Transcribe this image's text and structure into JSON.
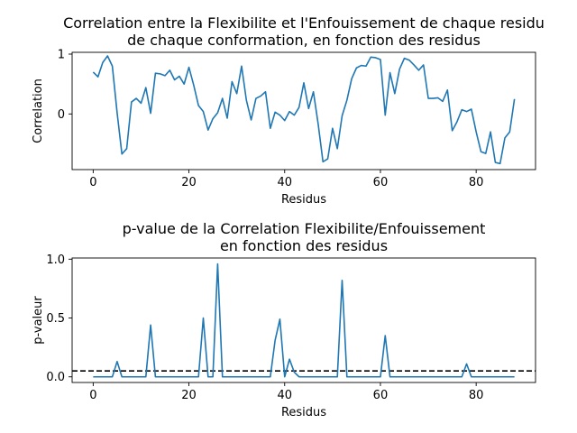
{
  "chart_data": [
    {
      "type": "line",
      "title": "Correlation entre la Flexibilite et l'Enfouissement de chaque residu\nde chaque conformation, en fonction des residus",
      "xlabel": "Residus",
      "ylabel": "Correlation",
      "xlim": [
        -4.4,
        92.4
      ],
      "ylim": [
        -0.93,
        1.03
      ],
      "xticks": [
        0,
        20,
        40,
        60,
        80
      ],
      "yticks": [
        1,
        0
      ],
      "grid": false,
      "series": [
        {
          "color": "#1f77b4",
          "x": [
            0,
            1,
            2,
            3,
            4,
            5,
            6,
            7,
            8,
            9,
            10,
            11,
            12,
            13,
            14,
            15,
            16,
            17,
            18,
            19,
            20,
            21,
            22,
            23,
            24,
            25,
            26,
            27,
            28,
            29,
            30,
            31,
            32,
            33,
            34,
            35,
            36,
            37,
            38,
            39,
            40,
            41,
            42,
            43,
            44,
            45,
            46,
            47,
            48,
            49,
            50,
            51,
            52,
            53,
            54,
            55,
            56,
            57,
            58,
            59,
            60,
            61,
            62,
            63,
            64,
            65,
            66,
            67,
            68,
            69,
            70,
            71,
            72,
            73,
            74,
            75,
            76,
            77,
            78,
            79,
            80,
            81,
            82,
            83,
            84,
            85,
            86,
            87,
            88
          ],
          "values": [
            0.7,
            0.62,
            0.86,
            0.97,
            0.8,
            0.02,
            -0.67,
            -0.58,
            0.2,
            0.26,
            0.18,
            0.44,
            0.01,
            0.68,
            0.67,
            0.64,
            0.73,
            0.57,
            0.63,
            0.5,
            0.78,
            0.48,
            0.14,
            0.04,
            -0.27,
            -0.08,
            0.02,
            0.26,
            -0.07,
            0.54,
            0.34,
            0.8,
            0.23,
            -0.1,
            0.26,
            0.3,
            0.37,
            -0.24,
            0.03,
            -0.02,
            -0.11,
            0.04,
            -0.02,
            0.11,
            0.52,
            0.09,
            0.37,
            -0.17,
            -0.8,
            -0.75,
            -0.24,
            -0.58,
            -0.03,
            0.23,
            0.59,
            0.77,
            0.81,
            0.8,
            0.95,
            0.94,
            0.91,
            -0.02,
            0.69,
            0.34,
            0.75,
            0.93,
            0.9,
            0.82,
            0.73,
            0.82,
            0.26,
            0.26,
            0.27,
            0.21,
            0.4,
            -0.28,
            -0.13,
            0.07,
            0.04,
            0.08,
            -0.3,
            -0.63,
            -0.66,
            -0.3,
            -0.81,
            -0.83,
            -0.4,
            -0.3,
            0.25
          ]
        }
      ]
    },
    {
      "type": "line",
      "title": "p-value de la Correlation Flexibilite/Enfouissement\nen fonction des residus",
      "xlabel": "Residus",
      "ylabel": "p-valeur",
      "xlim": [
        -4.4,
        92.4
      ],
      "ylim": [
        -0.048,
        1.01
      ],
      "xticks": [
        0,
        20,
        40,
        60,
        80
      ],
      "yticks": [
        1.0,
        0.5,
        0.0
      ],
      "ytick_labels": [
        "1.0",
        "0.5",
        "0.0"
      ],
      "grid": false,
      "reference_line": {
        "y": 0.05,
        "style": "dashed",
        "color": "#000000"
      },
      "series": [
        {
          "color": "#1f77b4",
          "x": [
            0,
            1,
            2,
            3,
            4,
            5,
            6,
            7,
            8,
            9,
            10,
            11,
            12,
            13,
            14,
            15,
            16,
            17,
            18,
            19,
            20,
            21,
            22,
            23,
            24,
            25,
            26,
            27,
            28,
            29,
            30,
            31,
            32,
            33,
            34,
            35,
            36,
            37,
            38,
            39,
            40,
            41,
            42,
            43,
            44,
            45,
            46,
            47,
            48,
            49,
            50,
            51,
            52,
            53,
            54,
            55,
            56,
            57,
            58,
            59,
            60,
            61,
            62,
            63,
            64,
            65,
            66,
            67,
            68,
            69,
            70,
            71,
            72,
            73,
            74,
            75,
            76,
            77,
            78,
            79,
            80,
            81,
            82,
            83,
            84,
            85,
            86,
            87,
            88
          ],
          "values": [
            0.0,
            0.0,
            0.0,
            0.0,
            0.0,
            0.13,
            0.0,
            0.0,
            0.0,
            0.0,
            0.0,
            0.0,
            0.44,
            0.0,
            0.0,
            0.0,
            0.0,
            0.0,
            0.0,
            0.0,
            0.0,
            0.0,
            0.0,
            0.5,
            0.0,
            0.0,
            0.96,
            0.0,
            0.0,
            0.0,
            0.0,
            0.0,
            0.0,
            0.0,
            0.0,
            0.0,
            0.0,
            0.0,
            0.31,
            0.49,
            0.0,
            0.15,
            0.04,
            0.0,
            0.0,
            0.0,
            0.0,
            0.0,
            0.0,
            0.0,
            0.0,
            0.0,
            0.82,
            0.0,
            0.0,
            0.0,
            0.0,
            0.0,
            0.0,
            0.0,
            0.0,
            0.35,
            0.0,
            0.0,
            0.0,
            0.0,
            0.0,
            0.0,
            0.0,
            0.0,
            0.0,
            0.0,
            0.0,
            0.0,
            0.0,
            0.0,
            0.0,
            0.0,
            0.11,
            0.0,
            0.0,
            0.0,
            0.0,
            0.0,
            0.0,
            0.0,
            0.0,
            0.0,
            0.0
          ]
        }
      ]
    }
  ]
}
